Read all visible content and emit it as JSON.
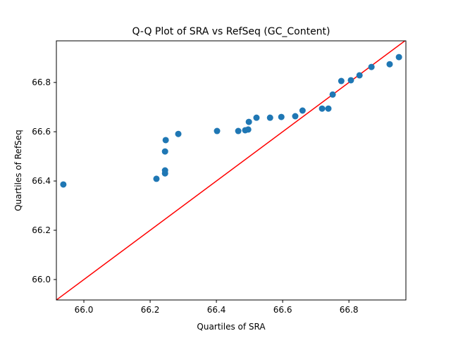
{
  "chart_data": {
    "type": "scatter",
    "title": "Q-Q Plot of SRA vs RefSeq (GC_Content)",
    "x_label": "Quartiles of SRA",
    "y_label": "Quartiles of RefSeq",
    "color": "#1f77b4",
    "x": [
      65.938,
      66.219,
      66.245,
      66.245,
      66.245,
      66.247,
      66.285,
      66.402,
      66.466,
      66.487,
      66.496,
      66.498,
      66.521,
      66.562,
      66.596,
      66.638,
      66.66,
      66.719,
      66.738,
      66.751,
      66.777,
      66.806,
      66.832,
      66.868,
      66.923,
      66.951
    ],
    "values": [
      66.386,
      66.409,
      66.431,
      66.443,
      66.52,
      66.566,
      66.591,
      66.603,
      66.603,
      66.606,
      66.609,
      66.64,
      66.657,
      66.657,
      66.66,
      66.663,
      66.686,
      66.694,
      66.694,
      66.751,
      66.806,
      66.809,
      66.829,
      66.863,
      66.874,
      66.903
    ],
    "xlim": [
      65.917,
      66.972
    ],
    "ylim": [
      65.917,
      66.969
    ],
    "xticks": [
      {
        "value": 66,
        "label": "66.0"
      },
      66.2,
      66.4,
      66.6,
      66.8
    ],
    "yticks": [
      {
        "value": 66,
        "label": "66.0"
      },
      66.2,
      66.4,
      66.6,
      66.8
    ],
    "reference_line": {
      "color": "red",
      "x": [
        65.917,
        66.972
      ],
      "y": [
        65.917,
        66.972
      ]
    }
  }
}
